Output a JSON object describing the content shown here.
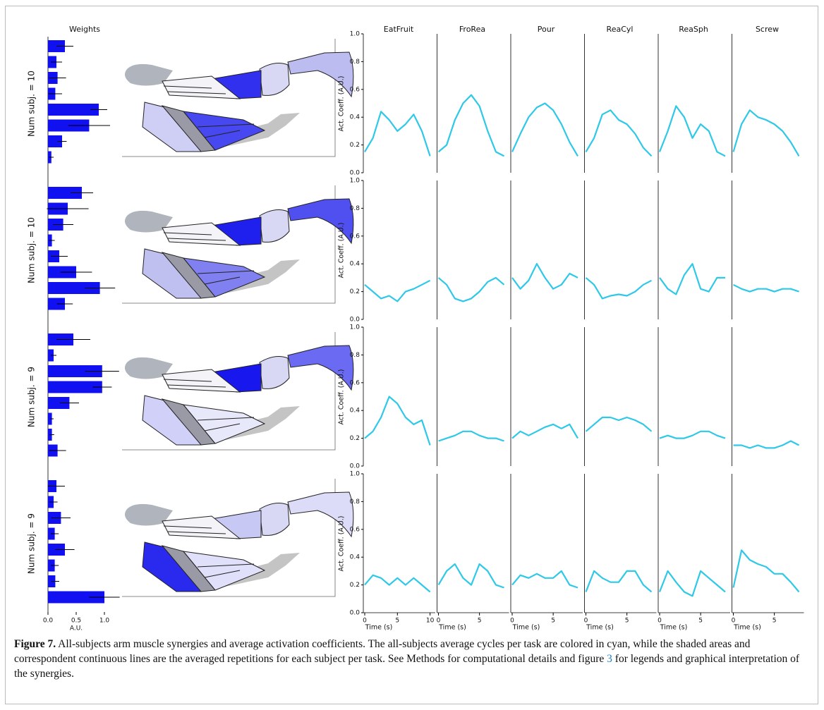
{
  "figure": {
    "weights": {
      "title": "Weights",
      "xlabel": "A.U.",
      "color": "#1010f0",
      "xlim": [
        0,
        1.3
      ],
      "xticks": [
        {
          "value": 0,
          "label": "0.0"
        },
        0.5,
        {
          "value": 1,
          "label": "1.0"
        }
      ],
      "rows": [
        {
          "label": "Num subj. = 10",
          "values": [
            0.3,
            0.15,
            0.17,
            0.13,
            0.9,
            0.73,
            0.25,
            0.06
          ],
          "errors": [
            0.15,
            0.1,
            0.15,
            0.12,
            0.15,
            0.37,
            0.08,
            0.04
          ]
        },
        {
          "label": "Num subj. = 10",
          "values": [
            0.6,
            0.35,
            0.27,
            0.07,
            0.2,
            0.5,
            0.92,
            0.3
          ],
          "errors": [
            0.2,
            0.37,
            0.18,
            0.05,
            0.15,
            0.28,
            0.27,
            0.14
          ]
        },
        {
          "label": "Num subj. = 9",
          "values": [
            0.45,
            0.1,
            0.96,
            0.96,
            0.38,
            0.07,
            0.07,
            0.17
          ],
          "errors": [
            0.3,
            0.05,
            0.3,
            0.17,
            0.17,
            0.03,
            0.04,
            0.15
          ]
        },
        {
          "label": "Num subj. = 9",
          "values": [
            0.15,
            0.1,
            0.23,
            0.12,
            0.3,
            0.12,
            0.13,
            1.0
          ],
          "errors": [
            0.15,
            0.07,
            0.17,
            0.07,
            0.17,
            0.07,
            0.07,
            0.27
          ]
        }
      ]
    },
    "activations": {
      "ylabel": "Act. Coeff. (A.U.)",
      "xlabel": "Time (s)",
      "color": "#2ec8e8",
      "ylim": [
        0,
        1
      ],
      "yticks": [
        {
          "value": 0,
          "label": "0.0"
        },
        0.2,
        0.4,
        0.6,
        0.8,
        {
          "value": 1,
          "label": "1.0"
        }
      ],
      "tasks": [
        {
          "name": "EatFruit",
          "xlim": [
            0,
            10.8
          ],
          "xticks": [
            0,
            5,
            10
          ],
          "x": [
            0,
            1.25,
            2.5,
            3.75,
            5,
            6.25,
            7.5,
            8.75,
            10
          ]
        },
        {
          "name": "FroRea",
          "xlim": [
            0,
            8.6
          ],
          "xticks": [
            0,
            5
          ],
          "x": [
            0,
            1,
            2,
            3,
            4,
            5,
            6,
            7,
            8
          ]
        },
        {
          "name": "Pour",
          "xlim": [
            0,
            8.6
          ],
          "xticks": [
            0,
            5
          ],
          "x": [
            0,
            1,
            2,
            3,
            4,
            5,
            6,
            7,
            8
          ]
        },
        {
          "name": "ReaCyl",
          "xlim": [
            0,
            8.6
          ],
          "xticks": [
            0,
            5
          ],
          "x": [
            0,
            1,
            2,
            3,
            4,
            5,
            6,
            7,
            8
          ]
        },
        {
          "name": "ReaSph",
          "xlim": [
            0,
            8.6
          ],
          "xticks": [
            0,
            5
          ],
          "x": [
            0,
            1,
            2,
            3,
            4,
            5,
            6,
            7,
            8
          ]
        },
        {
          "name": "Screw",
          "xlim": [
            0,
            8.6
          ],
          "xticks": [
            0,
            5
          ],
          "x": [
            0,
            1,
            2,
            3,
            4,
            5,
            6,
            7,
            8
          ]
        }
      ],
      "means": [
        [
          [
            0.15,
            0.25,
            0.44,
            0.38,
            0.3,
            0.35,
            0.42,
            0.3,
            0.12
          ],
          [
            0.15,
            0.2,
            0.38,
            0.5,
            0.56,
            0.48,
            0.3,
            0.15,
            0.12
          ],
          [
            0.15,
            0.28,
            0.4,
            0.47,
            0.5,
            0.45,
            0.35,
            0.22,
            0.12
          ],
          [
            0.15,
            0.25,
            0.42,
            0.45,
            0.38,
            0.35,
            0.28,
            0.18,
            0.12
          ],
          [
            0.15,
            0.3,
            0.48,
            0.4,
            0.25,
            0.35,
            0.3,
            0.15,
            0.12
          ],
          [
            0.15,
            0.35,
            0.45,
            0.4,
            0.38,
            0.35,
            0.3,
            0.22,
            0.12
          ]
        ],
        [
          [
            0.25,
            0.2,
            0.15,
            0.17,
            0.13,
            0.2,
            0.22,
            0.25,
            0.28
          ],
          [
            0.3,
            0.25,
            0.15,
            0.13,
            0.15,
            0.2,
            0.27,
            0.3,
            0.25
          ],
          [
            0.3,
            0.22,
            0.28,
            0.4,
            0.3,
            0.22,
            0.25,
            0.33,
            0.3
          ],
          [
            0.3,
            0.25,
            0.15,
            0.17,
            0.18,
            0.17,
            0.2,
            0.25,
            0.28
          ],
          [
            0.3,
            0.22,
            0.18,
            0.32,
            0.4,
            0.22,
            0.2,
            0.3,
            0.3
          ],
          [
            0.25,
            0.22,
            0.2,
            0.22,
            0.22,
            0.2,
            0.22,
            0.22,
            0.2
          ]
        ],
        [
          [
            0.2,
            0.25,
            0.35,
            0.5,
            0.45,
            0.35,
            0.3,
            0.33,
            0.15
          ],
          [
            0.18,
            0.2,
            0.22,
            0.25,
            0.25,
            0.22,
            0.2,
            0.2,
            0.18
          ],
          [
            0.2,
            0.25,
            0.22,
            0.25,
            0.28,
            0.3,
            0.27,
            0.3,
            0.2
          ],
          [
            0.25,
            0.3,
            0.35,
            0.35,
            0.33,
            0.35,
            0.33,
            0.3,
            0.25
          ],
          [
            0.2,
            0.22,
            0.2,
            0.2,
            0.22,
            0.25,
            0.25,
            0.22,
            0.2
          ],
          [
            0.15,
            0.15,
            0.13,
            0.15,
            0.13,
            0.13,
            0.15,
            0.18,
            0.15
          ]
        ],
        [
          [
            0.2,
            0.27,
            0.25,
            0.2,
            0.25,
            0.2,
            0.25,
            0.2,
            0.15
          ],
          [
            0.2,
            0.3,
            0.35,
            0.25,
            0.2,
            0.35,
            0.3,
            0.2,
            0.18
          ],
          [
            0.2,
            0.27,
            0.25,
            0.28,
            0.25,
            0.25,
            0.3,
            0.2,
            0.18
          ],
          [
            0.15,
            0.3,
            0.25,
            0.22,
            0.22,
            0.3,
            0.3,
            0.2,
            0.15
          ],
          [
            0.15,
            0.3,
            0.22,
            0.15,
            0.12,
            0.3,
            0.25,
            0.2,
            0.15
          ],
          [
            0.18,
            0.45,
            0.38,
            0.35,
            0.33,
            0.28,
            0.28,
            0.22,
            0.15
          ]
        ]
      ]
    }
  },
  "caption": {
    "label": "Figure 7.",
    "text_1": " All-subjects arm muscle synergies and average activation coefficients. The all-subjects average cycles per task are colored in cyan, while the shaded areas and correspondent continuous lines are the averaged repetitions for each subject per task. See Methods for computational details and figure ",
    "link": "3",
    "text_2": " for legends and graphical interpretation of the synergies."
  }
}
